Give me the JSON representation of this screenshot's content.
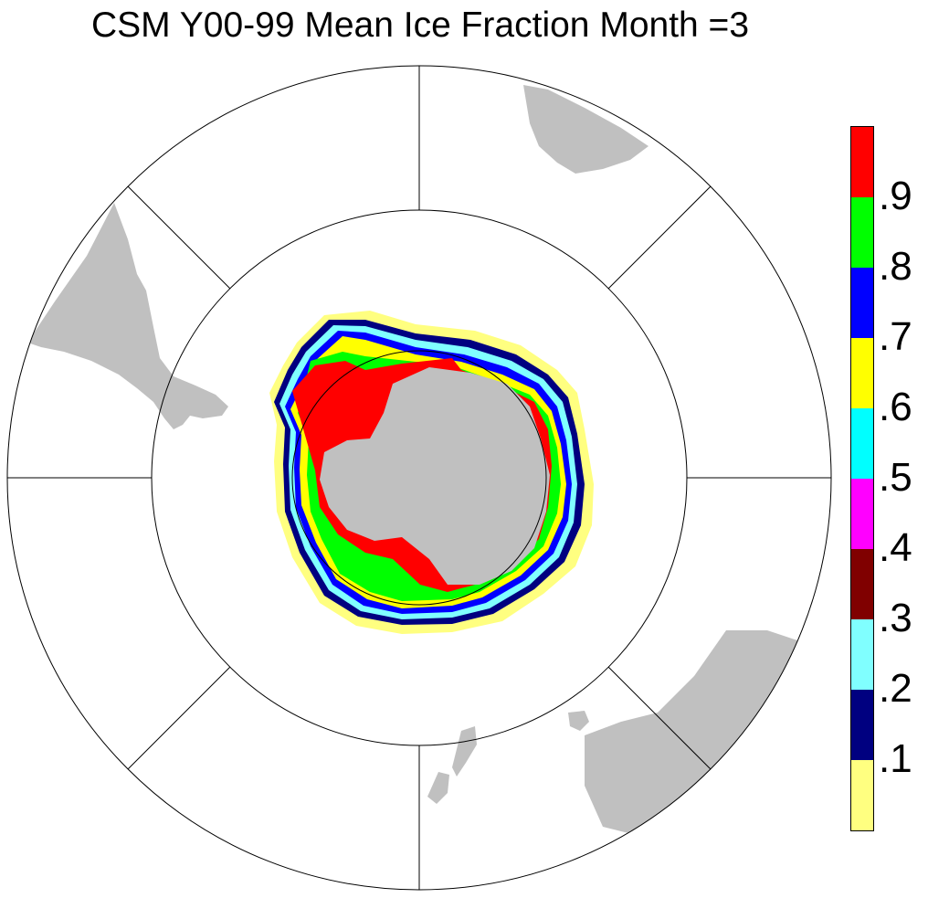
{
  "title": "CSM Y00-99 Mean Ice Fraction Month =3",
  "colorbar": {
    "colors": [
      "#ffff80",
      "#000080",
      "#80ffff",
      "#800000",
      "#ff00ff",
      "#00ffff",
      "#ffff00",
      "#0000ff",
      "#00ff00",
      "#ff0000"
    ],
    "labels": [
      ".1",
      ".2",
      ".3",
      ".4",
      ".5",
      ".6",
      ".7",
      ".8",
      ".9"
    ]
  },
  "colors": {
    "land": "#c0c0c0",
    "ocean": "#ffffff",
    "grid": "#000000"
  }
}
